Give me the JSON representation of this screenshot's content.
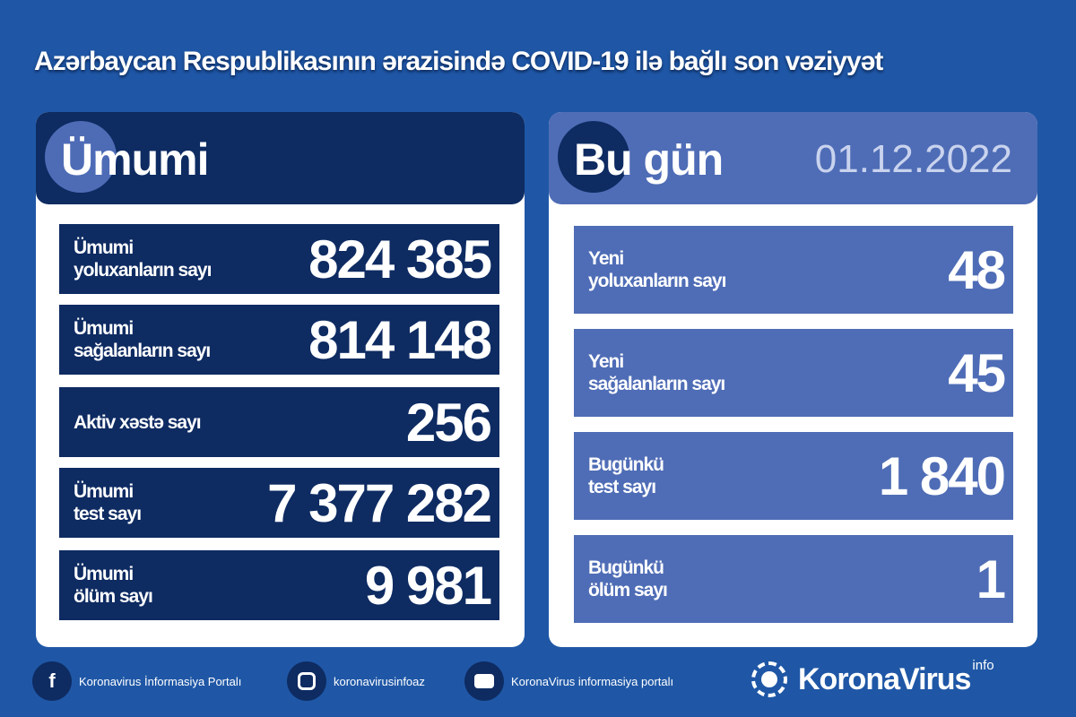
{
  "title": "Azərbaycan Respublikasının ərazisində COVID-19 ilə bağlı son vəziyyət",
  "colors": {
    "background": "#1f57a6",
    "navy": "#0e2b62",
    "light_blue": "#4f6db6"
  },
  "total": {
    "heading": "Ümumi",
    "rows": [
      {
        "label1": "Ümumi",
        "label2": "yoluxanların sayı",
        "value": "824 385"
      },
      {
        "label1": "Ümumi",
        "label2": "sağalanların sayı",
        "value": "814 148"
      },
      {
        "label1": "Aktiv xəstə sayı",
        "label2": "",
        "value": "256"
      },
      {
        "label1": "Ümumi",
        "label2": "test sayı",
        "value": "7 377 282"
      },
      {
        "label1": "Ümumi",
        "label2": "ölüm sayı",
        "value": "9 981"
      }
    ]
  },
  "today": {
    "heading": "Bu gün",
    "date": "01.12.2022",
    "rows": [
      {
        "label1": "Yeni",
        "label2": "yoluxanların sayı",
        "value": "48"
      },
      {
        "label1": "Yeni",
        "label2": "sağalanların sayı",
        "value": "45"
      },
      {
        "label1": "Bugünkü",
        "label2": "test sayı",
        "value": "1 840"
      },
      {
        "label1": "Bugünkü",
        "label2": "ölüm sayı",
        "value": "1"
      }
    ]
  },
  "footer": {
    "facebook": {
      "icon": "facebook-icon",
      "text": "Koronavirus İnformasiya Portalı"
    },
    "instagram": {
      "icon": "instagram-icon",
      "text": "koronavirusinfoaz"
    },
    "youtube": {
      "icon": "youtube-icon",
      "text": "KoronaVirus informasiya portalı"
    },
    "brand": "KoronaVirus",
    "brand_sup": "info"
  }
}
